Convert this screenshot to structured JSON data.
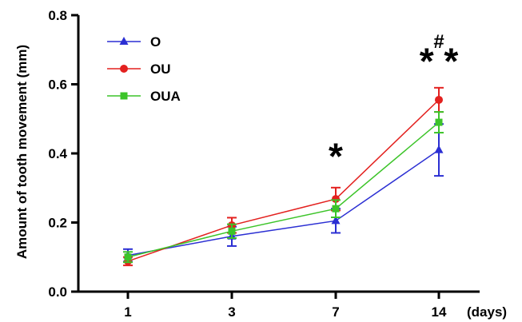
{
  "chart_data": {
    "type": "line",
    "ylabel": "Amount of tooth movement (mm)",
    "x_unit_label": "(days)",
    "categories": [
      "1",
      "3",
      "7",
      "14"
    ],
    "ylim": [
      0,
      0.8
    ],
    "yticks": [
      {
        "value": 0.0,
        "label": "0.0"
      },
      {
        "value": 0.2,
        "label": "0.2"
      },
      {
        "value": 0.4,
        "label": "0.4"
      },
      {
        "value": 0.6,
        "label": "0.6"
      },
      {
        "value": 0.8,
        "label": "0.8"
      }
    ],
    "grid": false,
    "legend_position": "top-left",
    "series": [
      {
        "name": "O",
        "color": "#2b2fd3",
        "marker": "triangle",
        "values": [
          0.105,
          0.16,
          0.205,
          0.41
        ],
        "errors": [
          0.018,
          0.028,
          0.035,
          0.075
        ]
      },
      {
        "name": "OU",
        "color": "#e3211f",
        "marker": "circle",
        "values": [
          0.088,
          0.192,
          0.268,
          0.555
        ],
        "errors": [
          0.012,
          0.022,
          0.033,
          0.035
        ]
      },
      {
        "name": "OUA",
        "color": "#3cc429",
        "marker": "square",
        "values": [
          0.1,
          0.175,
          0.24,
          0.49
        ],
        "errors": [
          0.015,
          0.02,
          0.025,
          0.03
        ]
      }
    ],
    "annotations": [
      {
        "category": "7",
        "y": 0.355,
        "text": "*",
        "style": "star"
      },
      {
        "category": "14",
        "y": 0.63,
        "text": "* *",
        "style": "star"
      },
      {
        "category": "14",
        "y": 0.705,
        "text": "#",
        "style": "hash"
      }
    ]
  }
}
